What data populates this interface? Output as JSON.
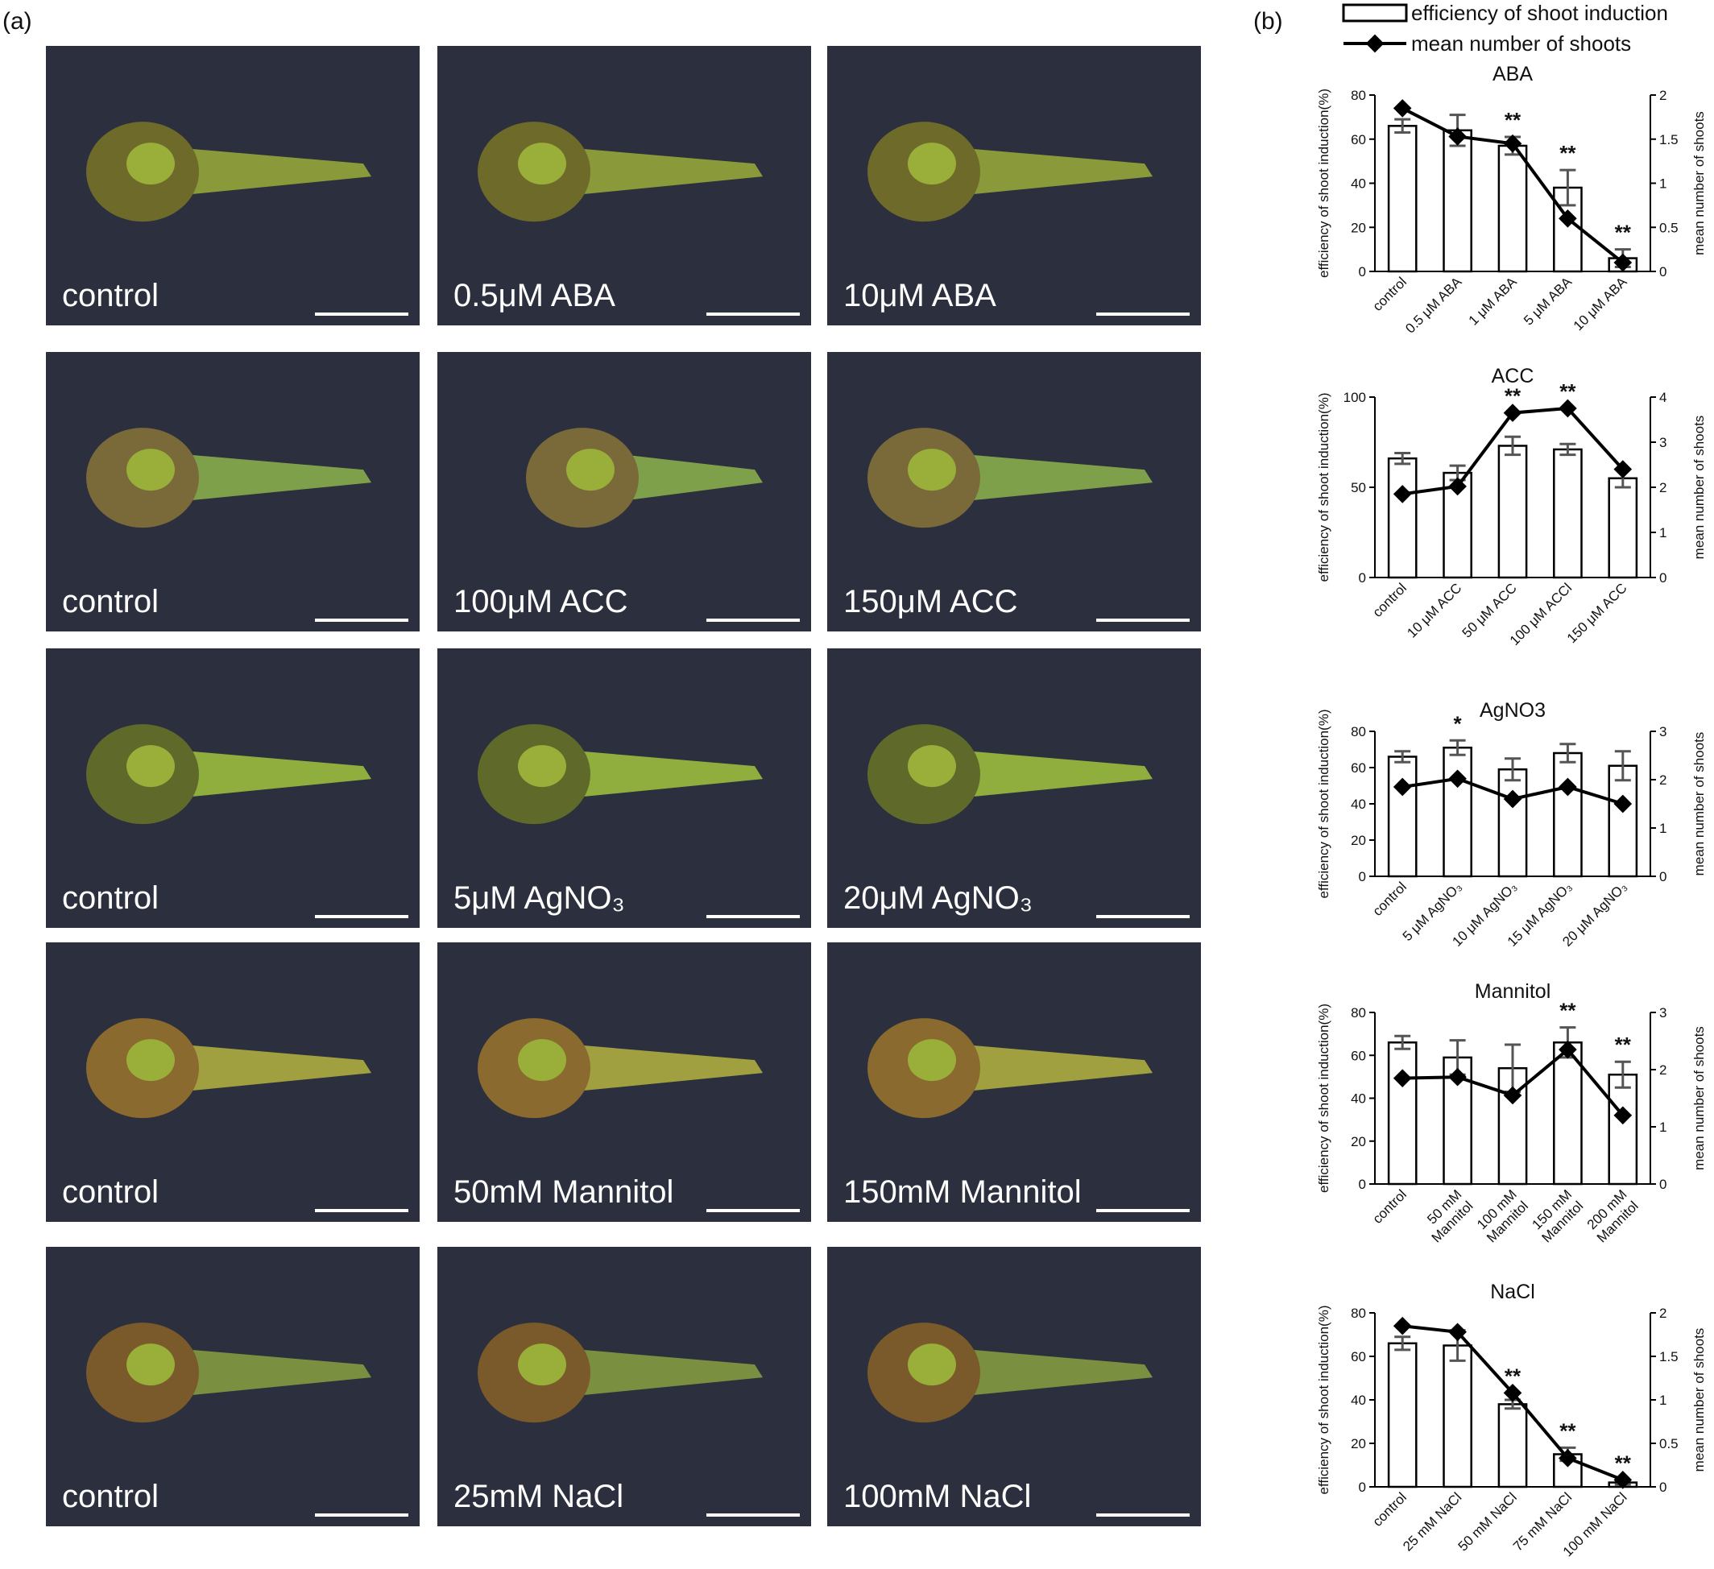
{
  "panel_a": {
    "label": "(a)",
    "rows": [
      [
        "control",
        "0.5μM ABA",
        "10μM ABA"
      ],
      [
        "control",
        "100μM ACC",
        "150μM ACC"
      ],
      [
        "control",
        "5μM AgNO₃",
        "20μM AgNO₃"
      ],
      [
        "control",
        "50mM Mannitol",
        "150mM Mannitol"
      ],
      [
        "control",
        "25mM NaCl",
        "100mM NaCl"
      ]
    ]
  },
  "panel_b": {
    "label": "(b)",
    "legend": [
      {
        "name": "efficiency of shoot induction"
      },
      {
        "name": "mean number of shoots"
      }
    ]
  },
  "chart_data": [
    {
      "type": "combo",
      "title": "ABA",
      "categories": [
        "control",
        "0.5 μM ABA",
        "1 μM ABA",
        "5 μM ABA",
        "10 μM ABA"
      ],
      "series": [
        {
          "type": "bar",
          "color": "#ffffff",
          "values": [
            66,
            64,
            57,
            38,
            6
          ],
          "errors": [
            3,
            7,
            4,
            8,
            4
          ]
        },
        {
          "type": "line",
          "axis": "y2",
          "color": "#000000",
          "values": [
            1.85,
            1.53,
            1.45,
            0.6,
            0.1
          ]
        }
      ],
      "significance": [
        null,
        null,
        "**",
        "**",
        "**"
      ],
      "ylabel": "efficiency of shoot induction(%)",
      "y2label": "mean number of shoots",
      "ylim": [
        0,
        80
      ],
      "yticks": [
        0,
        20,
        40,
        60,
        80
      ],
      "y2lim": [
        0,
        2
      ],
      "y2ticks": [
        0,
        0.5,
        1,
        1.5,
        2
      ]
    },
    {
      "type": "combo",
      "title": "ACC",
      "categories": [
        "control",
        "10 μM ACC",
        "50 μM ACC",
        "100 μM ACCl",
        "150 μM ACC"
      ],
      "series": [
        {
          "type": "bar",
          "color": "#ffffff",
          "values": [
            66,
            58,
            73,
            71,
            55
          ],
          "errors": [
            3,
            4,
            5,
            3,
            5
          ]
        },
        {
          "type": "line",
          "axis": "y2",
          "color": "#000000",
          "values": [
            1.85,
            2.02,
            3.65,
            3.75,
            2.4
          ]
        }
      ],
      "significance": [
        null,
        null,
        "**",
        "**",
        null
      ],
      "ylabel": "efficiency of shoot induction(%)",
      "y2label": "mean number of shoots",
      "ylim": [
        0,
        100
      ],
      "yticks": [
        0,
        50,
        100
      ],
      "y2lim": [
        0,
        4
      ],
      "y2ticks": [
        0,
        1,
        2,
        3,
        4
      ]
    },
    {
      "type": "combo",
      "title": "AgNO3",
      "categories": [
        "control",
        "5 μM AgNO₃",
        "10 μM AgNO₃",
        "15 μM AgNO₃",
        "20 μM AgNO₃"
      ],
      "series": [
        {
          "type": "bar",
          "color": "#ffffff",
          "values": [
            66,
            71,
            59,
            68,
            61
          ],
          "errors": [
            3,
            4,
            6,
            5,
            8
          ]
        },
        {
          "type": "line",
          "axis": "y2",
          "color": "#000000",
          "values": [
            1.85,
            2.02,
            1.6,
            1.85,
            1.5
          ]
        }
      ],
      "significance": [
        null,
        "*",
        null,
        null,
        null
      ],
      "ylabel": "efficiency of shoot induction(%)",
      "y2label": "mean number of shoots",
      "ylim": [
        0,
        80
      ],
      "yticks": [
        0,
        20,
        40,
        60,
        80
      ],
      "y2lim": [
        0,
        3
      ],
      "y2ticks": [
        0,
        1,
        2,
        3
      ]
    },
    {
      "type": "combo",
      "title": "Mannitol",
      "categories": [
        "control",
        "50 mM\nMannitol",
        "100 mM\nMannitol",
        "150 mM\nMannitol",
        "200 mM\nMannitol"
      ],
      "series": [
        {
          "type": "bar",
          "color": "#ffffff",
          "values": [
            66,
            59,
            54,
            66,
            51
          ],
          "errors": [
            3,
            8,
            11,
            7,
            6
          ]
        },
        {
          "type": "line",
          "axis": "y2",
          "color": "#000000",
          "values": [
            1.85,
            1.87,
            1.55,
            2.35,
            1.2
          ]
        }
      ],
      "significance": [
        null,
        null,
        null,
        "**",
        "**"
      ],
      "ylabel": "efficiency of shoot induction(%)",
      "y2label": "mean number of shoots",
      "ylim": [
        0,
        80
      ],
      "yticks": [
        0,
        20,
        40,
        60,
        80
      ],
      "y2lim": [
        0,
        3
      ],
      "y2ticks": [
        0,
        1,
        2,
        3
      ]
    },
    {
      "type": "combo",
      "title": "NaCl",
      "categories": [
        "control",
        "25 mM  NaCl",
        "50 mM NaCl",
        "75 mM  NaCl",
        "100 mM  NaCl"
      ],
      "series": [
        {
          "type": "bar",
          "color": "#ffffff",
          "values": [
            66,
            65,
            38,
            15,
            2
          ],
          "errors": [
            3,
            7,
            2,
            3,
            1
          ]
        },
        {
          "type": "line",
          "axis": "y2",
          "color": "#000000",
          "values": [
            1.85,
            1.78,
            1.08,
            0.33,
            0.08
          ]
        }
      ],
      "significance": [
        null,
        null,
        "**",
        "**",
        "**"
      ],
      "ylabel": "efficiency of shoot induction(%)",
      "y2label": "mean number of shoots",
      "ylim": [
        0,
        80
      ],
      "yticks": [
        0,
        20,
        40,
        60,
        80
      ],
      "y2lim": [
        0,
        2
      ],
      "y2ticks": [
        0,
        0.5,
        1,
        1.5,
        2
      ]
    }
  ]
}
